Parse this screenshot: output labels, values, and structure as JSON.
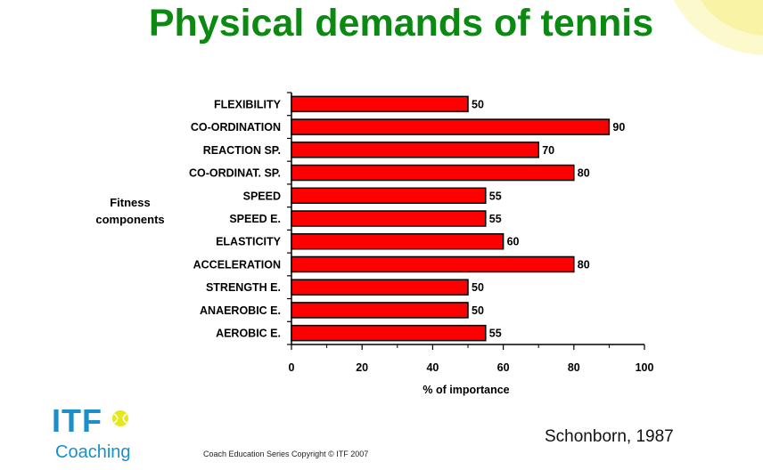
{
  "slide": {
    "title": "Physical demands of tennis",
    "citation": "Schonborn, 1987",
    "copyright": "Coach Education Series Copyright © ITF 2007",
    "logo": {
      "primary": "ITF",
      "secondary": "Coaching",
      "icon": "tennis-ball-icon"
    }
  },
  "colors": {
    "title": "#0a8a10",
    "bar": "#ff0000",
    "bar_stroke": "#000000",
    "logo": "#1c8fc9"
  },
  "chart_data": {
    "type": "bar",
    "orientation": "horizontal",
    "categories": [
      "FLEXIBILITY",
      "CO-ORDINATION",
      "REACTION SP.",
      "CO-ORDINAT. SP.",
      "SPEED",
      "SPEED E.",
      "ELASTICITY",
      "ACCELERATION",
      "STRENGTH E.",
      "ANAEROBIC E.",
      "AEROBIC E."
    ],
    "values": [
      50,
      90,
      70,
      80,
      55,
      55,
      60,
      80,
      50,
      50,
      55
    ],
    "xlabel": "% of importance",
    "ylabel_lines": [
      "Fitness",
      "components"
    ],
    "xlim": [
      0,
      100
    ],
    "xticks": [
      0,
      20,
      40,
      60,
      80,
      100
    ],
    "data_labels": true,
    "grid": false
  }
}
